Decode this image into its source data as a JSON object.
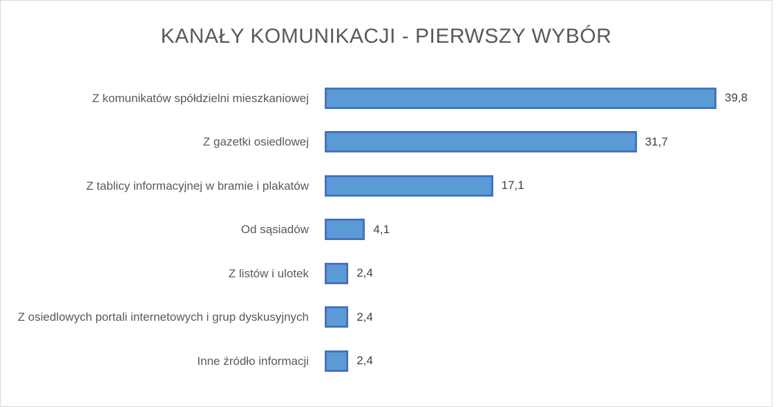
{
  "chart_data": {
    "type": "bar",
    "orientation": "horizontal",
    "title": "KANAŁY KOMUNIKACJI - PIERWSZY WYBÓR",
    "categories": [
      "Z komunikatów spółdzielni mieszkaniowej",
      "Z gazetki osiedlowej",
      "Z tablicy informacyjnej w bramie i plakatów",
      "Od sąsiadów",
      "Z listów i ulotek",
      "Z osiedlowych portali internetowych i grup dyskusyjnych",
      "Inne źródło informacji"
    ],
    "values": [
      39.8,
      31.7,
      17.1,
      4.1,
      2.4,
      2.4,
      2.4
    ],
    "value_labels": [
      "39,8",
      "31,7",
      "17,1",
      "4,1",
      "2,4",
      "2,4",
      "2,4"
    ],
    "color": "#5b9bd5",
    "edge_color": "#4472c4"
  }
}
